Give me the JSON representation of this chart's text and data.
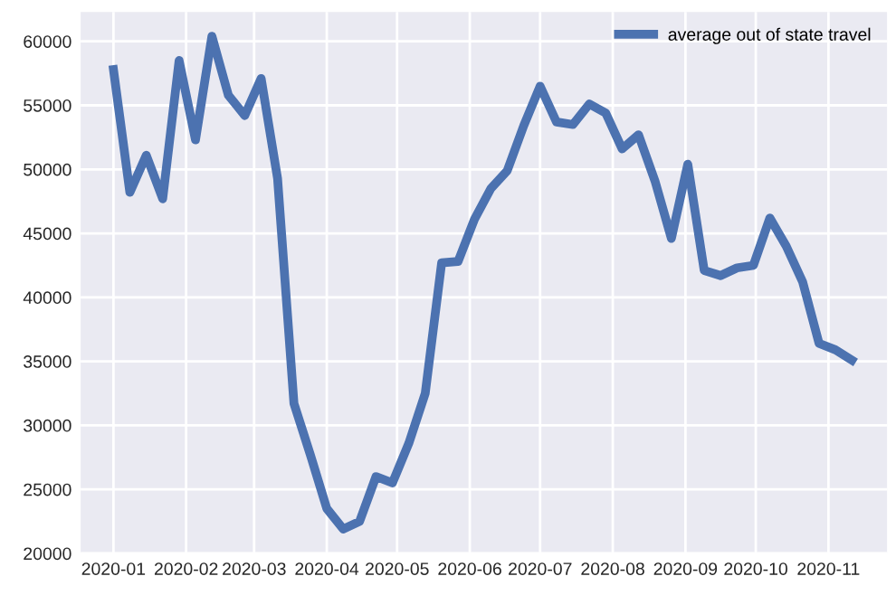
{
  "chart_data": {
    "type": "line",
    "x": [
      "2020-01-01",
      "2020-01-08",
      "2020-01-15",
      "2020-01-22",
      "2020-01-29",
      "2020-02-05",
      "2020-02-12",
      "2020-02-19",
      "2020-02-26",
      "2020-03-04",
      "2020-03-11",
      "2020-03-18",
      "2020-03-25",
      "2020-04-01",
      "2020-04-08",
      "2020-04-15",
      "2020-04-22",
      "2020-04-29",
      "2020-05-06",
      "2020-05-13",
      "2020-05-20",
      "2020-05-27",
      "2020-06-03",
      "2020-06-10",
      "2020-06-17",
      "2020-06-24",
      "2020-07-01",
      "2020-07-08",
      "2020-07-15",
      "2020-07-22",
      "2020-07-29",
      "2020-08-05",
      "2020-08-12",
      "2020-08-19",
      "2020-08-26",
      "2020-09-02",
      "2020-09-09",
      "2020-09-16",
      "2020-09-23",
      "2020-09-30",
      "2020-10-07",
      "2020-10-14",
      "2020-10-21",
      "2020-10-28",
      "2020-11-04",
      "2020-11-11"
    ],
    "series": [
      {
        "name": "average out of state travel",
        "color": "#4c72b0",
        "values": [
          57800,
          48200,
          51100,
          47700,
          58500,
          52300,
          60400,
          55800,
          54200,
          57100,
          49300,
          31700,
          27700,
          23500,
          21900,
          22500,
          26000,
          25500,
          28600,
          32500,
          42700,
          42800,
          46100,
          48500,
          49900,
          53400,
          56500,
          53700,
          53500,
          55100,
          54400,
          51600,
          52700,
          49100,
          44600,
          50400,
          42100,
          41700,
          42300,
          42500,
          46200,
          44000,
          41200,
          36400,
          35900,
          35100
        ]
      }
    ],
    "xlim": [
      "2019-12-18",
      "2020-11-26"
    ],
    "xticks": [
      {
        "value": "2020-01-01",
        "label": "2020-01"
      },
      {
        "value": "2020-02-01",
        "label": "2020-02"
      },
      {
        "value": "2020-03-01",
        "label": "2020-03"
      },
      {
        "value": "2020-04-01",
        "label": "2020-04"
      },
      {
        "value": "2020-05-01",
        "label": "2020-05"
      },
      {
        "value": "2020-06-01",
        "label": "2020-06"
      },
      {
        "value": "2020-07-01",
        "label": "2020-07"
      },
      {
        "value": "2020-08-01",
        "label": "2020-08"
      },
      {
        "value": "2020-09-01",
        "label": "2020-09"
      },
      {
        "value": "2020-10-01",
        "label": "2020-10"
      },
      {
        "value": "2020-11-01",
        "label": "2020-11"
      }
    ],
    "ylim": [
      20000,
      62300
    ],
    "yticks": [
      20000,
      25000,
      30000,
      35000,
      40000,
      45000,
      50000,
      55000,
      60000
    ],
    "grid": true,
    "legend": "top right",
    "marker": "none",
    "line_style": "solid"
  }
}
